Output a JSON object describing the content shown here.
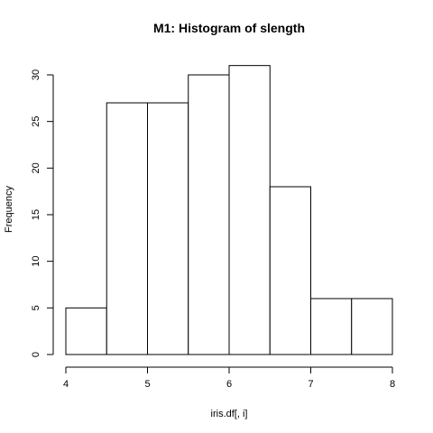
{
  "chart_data": {
    "type": "bar",
    "title": "M1: Histogram of slength",
    "xlabel": "iris.df[, i]",
    "ylabel": "Frequency",
    "bins": [
      {
        "from": 4.0,
        "to": 4.5,
        "count": 5
      },
      {
        "from": 4.5,
        "to": 5.0,
        "count": 27
      },
      {
        "from": 5.0,
        "to": 5.5,
        "count": 27
      },
      {
        "from": 5.5,
        "to": 6.0,
        "count": 30
      },
      {
        "from": 6.0,
        "to": 6.5,
        "count": 31
      },
      {
        "from": 6.5,
        "to": 7.0,
        "count": 18
      },
      {
        "from": 7.0,
        "to": 7.5,
        "count": 6
      },
      {
        "from": 7.5,
        "to": 8.0,
        "count": 6
      }
    ],
    "xlim": [
      4,
      8
    ],
    "ylim": [
      0,
      30
    ],
    "xticks": [
      "4",
      "5",
      "6",
      "7",
      "8"
    ],
    "yticks": [
      "0",
      "5",
      "10",
      "15",
      "20",
      "25",
      "30"
    ],
    "grid": false,
    "bar_fill": "#ffffff",
    "bar_stroke": "#000000"
  }
}
